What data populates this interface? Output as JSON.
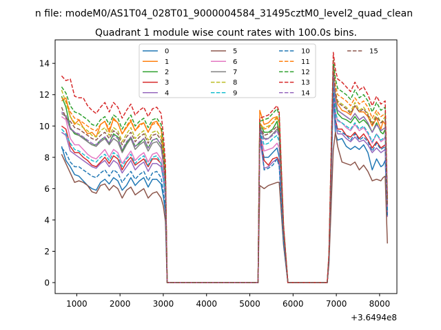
{
  "chart_data": {
    "type": "line",
    "suptitle": "n file: modeM0/AS1T04_028T01_9000004584_31495cztM0_level2_quad_clean",
    "title": "Quadrant 1 module wise count rates with 100.0s bins.",
    "xlabel": "",
    "ylabel": "",
    "x_offset_label": "+3.6494e8",
    "xlim": [
      500,
      8400
    ],
    "ylim": [
      -0.7,
      15.5
    ],
    "x_ticks": [
      1000,
      2000,
      3000,
      4000,
      5000,
      6000,
      7000,
      8000
    ],
    "x_tick_labels": [
      "1000",
      "2000",
      "3000",
      "4000",
      "5000",
      "6000",
      "7000",
      "8000"
    ],
    "y_ticks": [
      0,
      2,
      4,
      6,
      8,
      10,
      12,
      14
    ],
    "y_tick_labels": [
      "0",
      "2",
      "4",
      "6",
      "8",
      "10",
      "12",
      "14"
    ],
    "grid": false,
    "legend_position": "upper-center",
    "legend_columns": 4,
    "x": [
      650,
      750,
      850,
      950,
      1050,
      1150,
      1250,
      1350,
      1450,
      1550,
      1650,
      1750,
      1850,
      1950,
      2050,
      2150,
      2250,
      2350,
      2450,
      2550,
      2650,
      2750,
      2850,
      2950,
      3000,
      3050,
      3090,
      5190,
      5230,
      5330,
      5430,
      5530,
      5630,
      5680,
      5780,
      5880,
      5930,
      6790,
      6830,
      6930,
      6980,
      7030,
      7130,
      7230,
      7330,
      7430,
      7530,
      7630,
      7730,
      7830,
      7930,
      8030,
      8080,
      8130,
      8180
    ],
    "series": [
      {
        "name": "0",
        "color": "#1f77b4",
        "style": "solid",
        "values": [
          8.7,
          7.8,
          7.4,
          6.9,
          6.8,
          6.5,
          6.2,
          6.0,
          5.9,
          6.4,
          6.6,
          6.3,
          6.7,
          6.5,
          5.9,
          6.2,
          6.7,
          6.2,
          6.5,
          6.7,
          6.1,
          6.6,
          6.6,
          6.3,
          5.5,
          4.5,
          0,
          0,
          9.0,
          8.0,
          8.0,
          8.3,
          8.6,
          8.0,
          2.8,
          0,
          0,
          0,
          1.5,
          12.0,
          9.5,
          9.1,
          9.2,
          8.7,
          8.5,
          8.7,
          8.5,
          8.8,
          8.3,
          7.2,
          7.9,
          7.4,
          7.5,
          7.8,
          4.6
        ]
      },
      {
        "name": "1",
        "color": "#ff7f0e",
        "style": "solid",
        "values": [
          11.6,
          11.8,
          10.6,
          10.1,
          10.4,
          9.9,
          9.5,
          9.6,
          9.3,
          10.1,
          10.3,
          9.6,
          10.5,
          10.2,
          9.5,
          9.9,
          10.3,
          9.7,
          10.1,
          10.2,
          9.6,
          10.2,
          10.3,
          9.8,
          8.6,
          6.9,
          0,
          0,
          11.0,
          10.1,
          10.2,
          10.5,
          10.6,
          10.2,
          3.4,
          0,
          0,
          0,
          1.6,
          13.2,
          12.0,
          11.4,
          11.0,
          10.9,
          10.7,
          11.3,
          10.9,
          10.9,
          10.6,
          10.0,
          10.5,
          9.8,
          10.3,
          10.1,
          5.2
        ]
      },
      {
        "name": "2",
        "color": "#2ca02c",
        "style": "solid",
        "values": [
          11.9,
          11.2,
          9.9,
          9.5,
          9.4,
          9.3,
          9.0,
          8.8,
          8.8,
          9.1,
          9.3,
          8.9,
          9.5,
          9.3,
          8.4,
          8.9,
          9.3,
          8.7,
          8.9,
          9.2,
          8.6,
          9.1,
          9.2,
          8.8,
          7.8,
          6.4,
          0,
          0,
          10.2,
          9.6,
          9.6,
          9.8,
          10.3,
          9.5,
          3.2,
          0,
          0,
          0,
          1.5,
          13.4,
          11.5,
          10.8,
          10.5,
          10.4,
          10.2,
          10.6,
          10.2,
          10.4,
          10.1,
          9.6,
          10.2,
          9.6,
          9.5,
          9.8,
          4.8
        ]
      },
      {
        "name": "3",
        "color": "#d62728",
        "style": "solid",
        "values": [
          10.0,
          9.8,
          8.7,
          8.3,
          8.3,
          8.0,
          7.8,
          7.5,
          7.4,
          7.7,
          8.0,
          7.6,
          8.1,
          7.9,
          7.2,
          7.7,
          8.0,
          7.5,
          7.7,
          7.9,
          7.4,
          7.9,
          7.9,
          7.6,
          6.8,
          5.6,
          0,
          0,
          9.5,
          7.8,
          7.5,
          7.9,
          8.0,
          7.7,
          2.8,
          0,
          0,
          0,
          1.4,
          12.4,
          10.4,
          9.8,
          9.8,
          9.4,
          9.3,
          9.6,
          9.2,
          9.5,
          9.1,
          8.6,
          9.0,
          8.6,
          8.7,
          8.8,
          4.4
        ]
      },
      {
        "name": "4",
        "color": "#9467bd",
        "style": "solid",
        "values": [
          9.6,
          9.4,
          8.4,
          8.2,
          8.0,
          7.8,
          7.6,
          7.4,
          7.3,
          7.6,
          7.8,
          7.4,
          7.8,
          7.6,
          7.0,
          7.4,
          7.8,
          7.2,
          7.5,
          7.7,
          7.1,
          7.6,
          7.6,
          7.4,
          6.6,
          5.4,
          0,
          0,
          9.2,
          7.3,
          7.4,
          7.7,
          7.9,
          7.5,
          2.7,
          0,
          0,
          0,
          1.4,
          12.0,
          10.1,
          9.5,
          9.5,
          9.2,
          9.0,
          9.3,
          9.0,
          9.1,
          8.8,
          8.3,
          8.6,
          8.3,
          8.4,
          8.5,
          4.2
        ]
      },
      {
        "name": "5",
        "color": "#8c564b",
        "style": "solid",
        "values": [
          8.2,
          7.6,
          7.0,
          6.4,
          6.5,
          6.4,
          6.2,
          5.8,
          5.7,
          6.2,
          6.3,
          5.9,
          6.2,
          6.0,
          5.4,
          5.9,
          6.1,
          5.6,
          5.8,
          6.0,
          5.4,
          5.7,
          5.8,
          5.4,
          4.9,
          3.9,
          0,
          0,
          6.2,
          6.0,
          6.2,
          6.3,
          6.4,
          6.4,
          2.4,
          0,
          0,
          0,
          1.2,
          8.5,
          9.6,
          8.7,
          7.7,
          7.6,
          7.5,
          7.7,
          7.2,
          7.5,
          7.1,
          6.5,
          6.6,
          6.5,
          6.7,
          6.8,
          2.5
        ]
      },
      {
        "name": "6",
        "color": "#e377c2",
        "style": "solid",
        "values": [
          10.6,
          10.4,
          9.2,
          8.8,
          8.8,
          8.5,
          8.2,
          8.0,
          7.9,
          8.2,
          8.5,
          8.0,
          8.5,
          8.3,
          7.6,
          8.0,
          8.4,
          7.8,
          8.1,
          8.3,
          7.7,
          8.2,
          8.3,
          7.9,
          7.0,
          5.8,
          0,
          0,
          9.6,
          8.4,
          8.5,
          8.6,
          8.9,
          8.6,
          3.0,
          0,
          0,
          0,
          1.5,
          12.8,
          10.9,
          10.3,
          10.2,
          9.9,
          9.7,
          10.1,
          9.7,
          9.9,
          9.5,
          8.9,
          9.5,
          9.0,
          9.1,
          9.3,
          4.6
        ]
      },
      {
        "name": "7",
        "color": "#7f7f7f",
        "style": "solid",
        "values": [
          10.8,
          10.6,
          9.8,
          9.6,
          9.4,
          9.2,
          9.0,
          8.8,
          8.7,
          9.0,
          9.2,
          8.8,
          9.2,
          9.0,
          8.3,
          8.8,
          9.2,
          8.5,
          8.8,
          9.0,
          8.4,
          8.9,
          9.0,
          8.6,
          7.6,
          6.1,
          0,
          0,
          10.0,
          9.2,
          9.2,
          9.5,
          9.8,
          9.4,
          3.2,
          0,
          0,
          0,
          1.6,
          13.5,
          11.7,
          11.0,
          10.8,
          10.6,
          10.4,
          10.8,
          10.4,
          10.6,
          10.2,
          9.6,
          10.1,
          9.7,
          9.8,
          9.9,
          4.9
        ]
      },
      {
        "name": "8",
        "color": "#bcbd22",
        "style": "dashed",
        "values": [
          12.3,
          11.5,
          10.6,
          10.2,
          10.1,
          9.9,
          9.7,
          9.4,
          9.3,
          9.7,
          9.9,
          9.4,
          9.9,
          9.7,
          9.0,
          9.5,
          9.9,
          9.2,
          9.5,
          9.7,
          9.1,
          9.6,
          9.7,
          9.3,
          8.2,
          6.6,
          0,
          0,
          10.0,
          9.9,
          10.0,
          10.2,
          10.6,
          10.2,
          3.5,
          0,
          0,
          0,
          1.7,
          13.7,
          12.2,
          11.6,
          11.4,
          11.2,
          10.9,
          11.5,
          11.0,
          11.2,
          10.8,
          10.2,
          10.8,
          10.2,
          10.4,
          10.6,
          5.0
        ]
      },
      {
        "name": "9",
        "color": "#17becf",
        "style": "dashed",
        "values": [
          9.8,
          9.5,
          8.9,
          8.5,
          8.4,
          8.2,
          8.0,
          7.8,
          7.7,
          8.0,
          8.2,
          7.8,
          8.3,
          8.1,
          7.4,
          7.9,
          8.2,
          7.6,
          7.9,
          8.1,
          7.5,
          8.0,
          8.1,
          7.6,
          6.8,
          5.6,
          0,
          0,
          9.7,
          8.8,
          8.9,
          9.2,
          9.4,
          9.0,
          3.0,
          0,
          0,
          0,
          1.5,
          12.8,
          10.9,
          10.4,
          10.2,
          10.0,
          9.8,
          10.2,
          9.8,
          10.0,
          9.6,
          9.0,
          9.5,
          9.1,
          9.2,
          9.3,
          4.6
        ]
      },
      {
        "name": "10",
        "color": "#1f77b4",
        "style": "dashed",
        "values": [
          8.6,
          8.3,
          7.7,
          7.4,
          7.4,
          7.2,
          7.0,
          6.8,
          6.7,
          7.0,
          7.2,
          6.8,
          7.2,
          7.0,
          6.4,
          6.8,
          7.1,
          6.6,
          6.9,
          7.1,
          6.5,
          7.0,
          7.1,
          6.7,
          5.8,
          4.8,
          0,
          0,
          10.1,
          7.2,
          7.3,
          7.5,
          7.9,
          7.4,
          2.6,
          0,
          0,
          0,
          1.4,
          12.5,
          10.3,
          9.7,
          9.6,
          9.4,
          9.1,
          9.5,
          9.1,
          9.3,
          9.0,
          8.4,
          8.9,
          8.5,
          8.6,
          8.7,
          4.3
        ]
      },
      {
        "name": "11",
        "color": "#ff7f0e",
        "style": "dashed",
        "values": [
          11.8,
          11.6,
          10.9,
          10.5,
          10.4,
          10.2,
          10.0,
          9.8,
          9.7,
          10.1,
          10.3,
          9.8,
          10.4,
          10.2,
          9.5,
          10.0,
          10.4,
          9.7,
          10.0,
          10.2,
          9.6,
          10.1,
          10.2,
          9.8,
          8.6,
          6.9,
          0,
          0,
          10.2,
          9.8,
          9.9,
          10.2,
          10.5,
          10.2,
          3.5,
          0,
          0,
          0,
          1.7,
          14.0,
          12.6,
          12.0,
          11.8,
          11.6,
          11.3,
          11.8,
          11.4,
          11.6,
          11.2,
          10.5,
          11.0,
          10.6,
          10.7,
          10.8,
          5.1
        ]
      },
      {
        "name": "12",
        "color": "#2ca02c",
        "style": "dashed",
        "values": [
          12.5,
          12.1,
          11.3,
          10.9,
          10.8,
          10.6,
          10.4,
          10.1,
          10.0,
          10.4,
          10.6,
          10.1,
          10.7,
          10.5,
          9.8,
          10.3,
          10.7,
          10.0,
          10.3,
          10.5,
          9.9,
          10.4,
          10.5,
          10.1,
          8.9,
          7.1,
          0,
          0,
          10.3,
          10.4,
          10.5,
          10.8,
          11.1,
          10.7,
          3.6,
          0,
          0,
          0,
          1.8,
          14.2,
          13.0,
          12.4,
          12.2,
          12.0,
          11.7,
          12.3,
          11.8,
          12.0,
          11.6,
          10.9,
          11.5,
          11.0,
          11.1,
          11.2,
          5.3
        ]
      },
      {
        "name": "13",
        "color": "#d62728",
        "style": "dashed",
        "values": [
          13.2,
          12.9,
          13.0,
          11.9,
          11.8,
          11.8,
          11.3,
          11.0,
          10.8,
          11.2,
          11.5,
          10.9,
          11.5,
          11.2,
          10.5,
          11.0,
          11.4,
          10.7,
          11.0,
          11.2,
          10.6,
          11.1,
          11.2,
          10.8,
          9.5,
          7.6,
          0,
          0,
          10.5,
          10.6,
          10.7,
          11.0,
          11.3,
          10.9,
          3.7,
          0,
          0,
          0,
          1.9,
          14.7,
          13.6,
          13.0,
          12.8,
          12.5,
          12.2,
          12.8,
          12.3,
          12.5,
          12.0,
          11.3,
          11.9,
          11.4,
          11.5,
          11.6,
          5.5
        ]
      },
      {
        "name": "14",
        "color": "#9467bd",
        "style": "dashed",
        "values": [
          10.9,
          10.7,
          9.9,
          9.6,
          9.5,
          9.3,
          9.1,
          8.9,
          8.8,
          9.1,
          9.3,
          8.9,
          9.4,
          9.2,
          8.5,
          9.0,
          9.3,
          8.7,
          9.0,
          9.2,
          8.6,
          9.1,
          9.2,
          8.8,
          7.7,
          6.2,
          0,
          0,
          9.8,
          9.1,
          9.2,
          9.4,
          9.7,
          9.3,
          3.2,
          0,
          0,
          0,
          1.6,
          13.3,
          11.6,
          11.0,
          10.8,
          10.6,
          10.4,
          10.8,
          10.4,
          10.6,
          10.2,
          9.6,
          10.1,
          9.7,
          9.8,
          9.9,
          4.9
        ]
      },
      {
        "name": "15",
        "color": "#8c564b",
        "style": "dashed",
        "values": [
          11.2,
          10.5,
          10.3,
          9.9,
          9.8,
          9.6,
          9.4,
          9.2,
          9.1,
          9.4,
          9.6,
          9.2,
          9.7,
          9.5,
          8.8,
          9.3,
          9.6,
          9.0,
          9.3,
          9.5,
          8.9,
          9.4,
          9.5,
          9.1,
          8.0,
          6.4,
          0,
          0,
          10.0,
          9.4,
          9.5,
          9.7,
          10.0,
          9.6,
          3.3,
          0,
          0,
          0,
          1.6,
          13.8,
          12.1,
          11.5,
          11.3,
          11.1,
          10.8,
          11.3,
          10.9,
          11.1,
          10.7,
          10.1,
          10.6,
          10.2,
          10.3,
          10.4,
          5.0
        ]
      }
    ]
  }
}
